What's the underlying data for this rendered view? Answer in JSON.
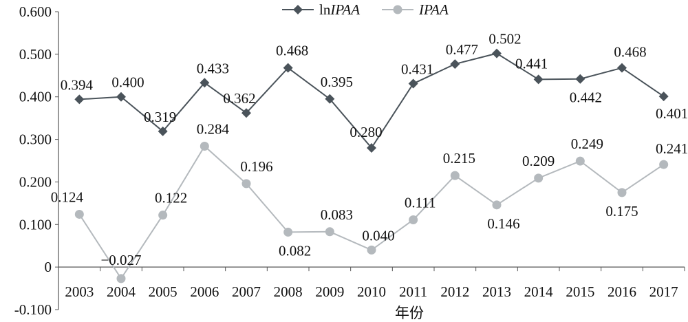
{
  "chart_data": {
    "type": "line",
    "xlabel": "年份",
    "ylabel": "",
    "categories": [
      "2003",
      "2004",
      "2005",
      "2006",
      "2007",
      "2008",
      "2009",
      "2010",
      "2011",
      "2012",
      "2013",
      "2014",
      "2015",
      "2016",
      "2017"
    ],
    "ylim": [
      -0.1,
      0.6
    ],
    "yticks": [
      "0.600",
      "0.500",
      "0.400",
      "0.300",
      "0.200",
      "0.100",
      "0",
      "-0.100"
    ],
    "legend_position": "top-center",
    "grid": false,
    "series": [
      {
        "name_prefix": "ln",
        "name_main": "IPAA",
        "color": "#4a535a",
        "marker": "diamond",
        "values": [
          0.394,
          0.4,
          0.319,
          0.433,
          0.362,
          0.468,
          0.395,
          0.28,
          0.431,
          0.477,
          0.502,
          0.441,
          0.442,
          0.468,
          0.401
        ],
        "labels": [
          "0.394",
          "0.400",
          "0.319",
          "0.433",
          "0.362",
          "0.468",
          "0.395",
          "0.280",
          "0.431",
          "0.477",
          "0.502",
          "0.441",
          "0.442",
          "0.468",
          "0.401"
        ]
      },
      {
        "name_prefix": "",
        "name_main": "IPAA",
        "color": "#b4b9bd",
        "marker": "circle",
        "values": [
          0.124,
          -0.027,
          0.122,
          0.284,
          0.196,
          0.082,
          0.083,
          0.04,
          0.111,
          0.215,
          0.146,
          0.209,
          0.249,
          0.175,
          0.241
        ],
        "labels": [
          "0.124",
          "−0.027",
          "0.122",
          "0.284",
          "0.196",
          "0.082",
          "0.083",
          "0.040",
          "0.111",
          "0.215",
          "0.146",
          "0.209",
          "0.249",
          "0.175",
          "0.241"
        ]
      }
    ]
  }
}
